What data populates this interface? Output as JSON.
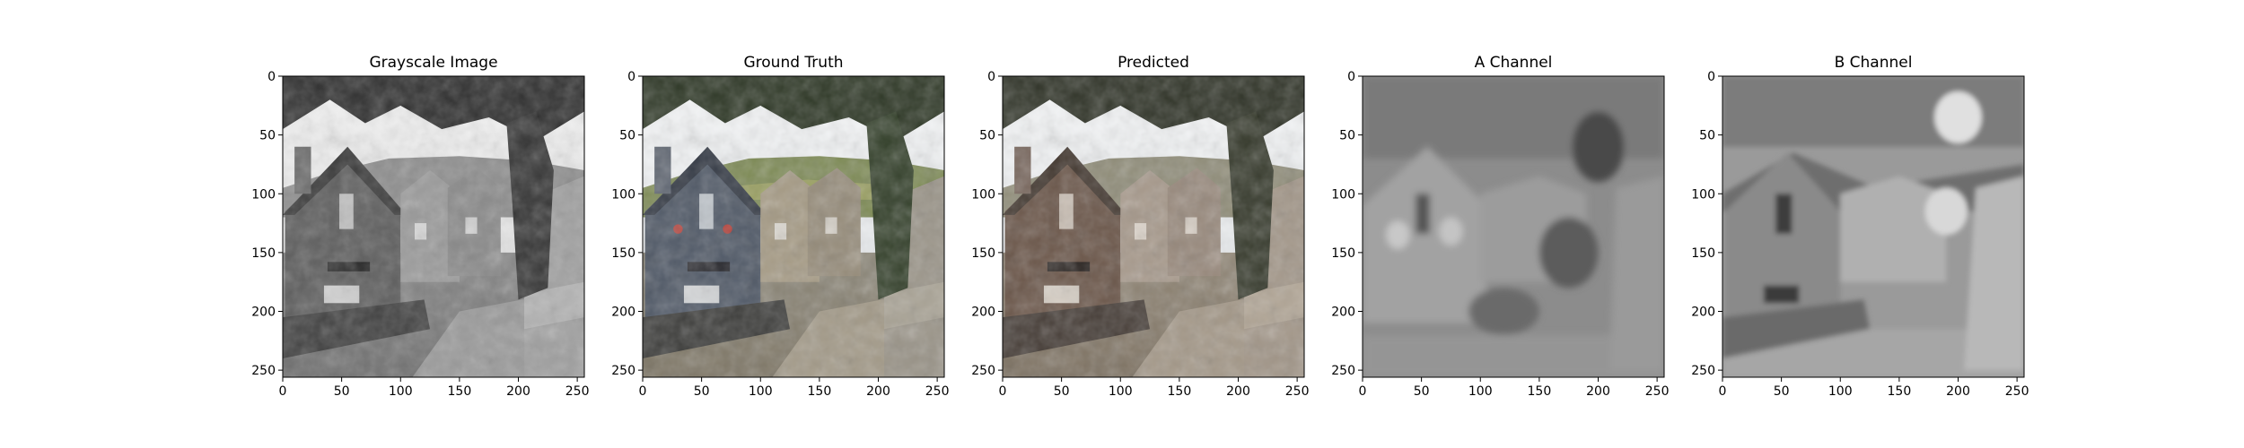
{
  "chart_data": [
    {
      "type": "image",
      "title": "Grayscale Image",
      "xlim": [
        0,
        256
      ],
      "ylim": [
        256,
        0
      ],
      "x_ticks": [
        0,
        50,
        100,
        150,
        200,
        250
      ],
      "y_ticks": [
        0,
        50,
        100,
        150,
        200,
        250
      ],
      "colormap": "gray"
    },
    {
      "type": "image",
      "title": "Ground Truth",
      "xlim": [
        0,
        256
      ],
      "ylim": [
        256,
        0
      ],
      "x_ticks": [
        0,
        50,
        100,
        150,
        200,
        250
      ],
      "y_ticks": [
        0,
        50,
        100,
        150,
        200,
        250
      ],
      "colormap": "rgb"
    },
    {
      "type": "image",
      "title": "Predicted",
      "xlim": [
        0,
        256
      ],
      "ylim": [
        256,
        0
      ],
      "x_ticks": [
        0,
        50,
        100,
        150,
        200,
        250
      ],
      "y_ticks": [
        0,
        50,
        100,
        150,
        200,
        250
      ],
      "colormap": "rgb"
    },
    {
      "type": "image",
      "title": "A Channel",
      "xlim": [
        0,
        256
      ],
      "ylim": [
        256,
        0
      ],
      "x_ticks": [
        0,
        50,
        100,
        150,
        200,
        250
      ],
      "y_ticks": [
        0,
        50,
        100,
        150,
        200,
        250
      ],
      "colormap": "gray"
    },
    {
      "type": "image",
      "title": "B Channel",
      "xlim": [
        0,
        256
      ],
      "ylim": [
        256,
        0
      ],
      "x_ticks": [
        0,
        50,
        100,
        150,
        200,
        250
      ],
      "y_ticks": [
        0,
        50,
        100,
        150,
        200,
        250
      ],
      "colormap": "gray"
    }
  ]
}
